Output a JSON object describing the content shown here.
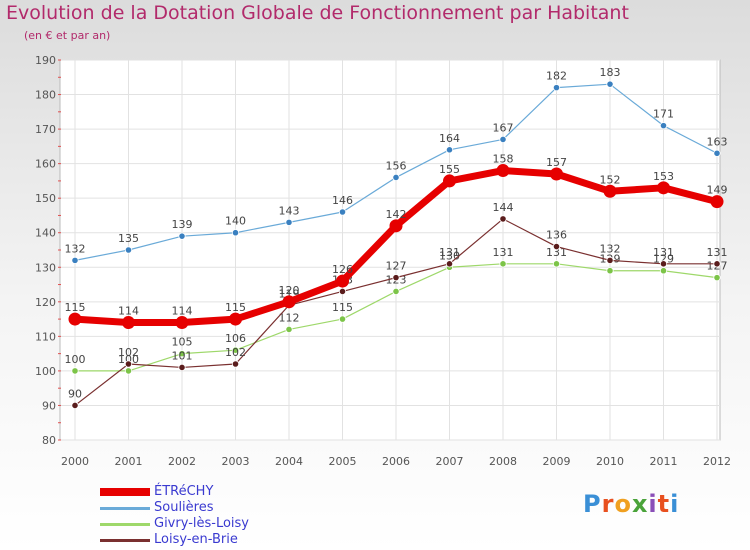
{
  "header": {
    "title": "Evolution de la Dotation Globale de Fonctionnement par Habitant",
    "subtitle": "(en € et par an)"
  },
  "logo": {
    "text": "Proxiti",
    "colors": [
      "#3a8fd6",
      "#e8501f",
      "#f0a020",
      "#4aa33a",
      "#8a4fb8",
      "#e8501f",
      "#3a8fd6"
    ]
  },
  "chart_data": {
    "type": "line",
    "title": "Evolution de la Dotation Globale de Fonctionnement par Habitant",
    "xlabel": "",
    "ylabel": "(en € et par an)",
    "ylim": [
      80,
      190
    ],
    "yticks": [
      80,
      90,
      100,
      110,
      120,
      130,
      140,
      150,
      160,
      170,
      180,
      190
    ],
    "grid": true,
    "legend_position": "bottom-left",
    "categories": [
      "2000",
      "2001",
      "2002",
      "2003",
      "2004",
      "2005",
      "2006",
      "2007",
      "2008",
      "2009",
      "2010",
      "2011",
      "2012"
    ],
    "series": [
      {
        "name": "Soulières",
        "color": "#6aaad8",
        "marker": "#3a80c0",
        "width": 1.2,
        "values": [
          132,
          135,
          139,
          140,
          143,
          146,
          156,
          164,
          167,
          182,
          183,
          171,
          163
        ]
      },
      {
        "name": "Givry-lès-Loisy",
        "color": "#9ed86a",
        "marker": "#7cc448",
        "width": 1.2,
        "values": [
          100,
          100,
          105,
          106,
          112,
          115,
          123,
          130,
          131,
          131,
          129,
          129,
          127
        ]
      },
      {
        "name": "Loisy-en-Brie",
        "color": "#7a3030",
        "marker": "#5a1c1c",
        "width": 1.2,
        "values": [
          90,
          102,
          101,
          102,
          119,
          123,
          127,
          131,
          144,
          136,
          132,
          131,
          131
        ]
      },
      {
        "name": "ÉTRéCHY",
        "color": "#e60000",
        "marker": "#e60000",
        "width": 7,
        "values": [
          115,
          114,
          114,
          115,
          120,
          126,
          142,
          155,
          158,
          157,
          152,
          153,
          149
        ]
      }
    ],
    "legend_order": [
      "ÉTRéCHY",
      "Soulières",
      "Givry-lès-Loisy",
      "Loisy-en-Brie"
    ]
  }
}
